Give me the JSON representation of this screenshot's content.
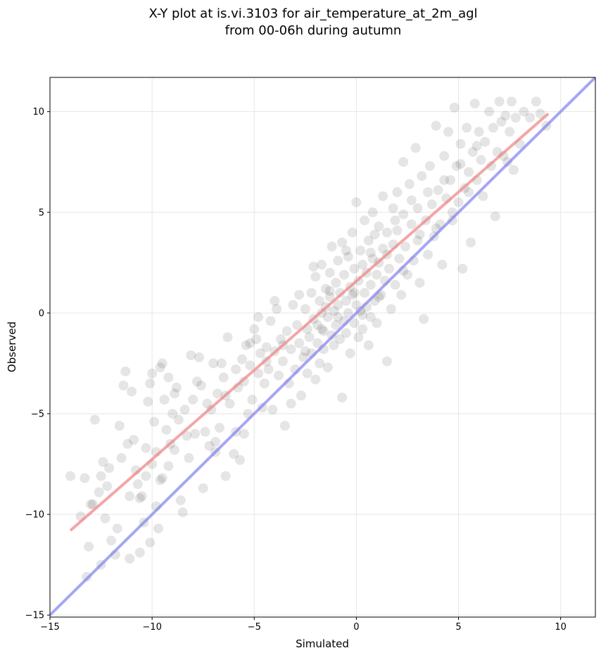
{
  "chart_data": {
    "type": "scatter",
    "title_lines": [
      "X-Y plot at is.vi.3103 for air_temperature_at_2m_agl",
      "from 00-06h during autumn"
    ],
    "xlabel": "Simulated",
    "ylabel": "Observed",
    "xlim": [
      -15,
      11.7
    ],
    "ylim": [
      -15.1,
      11.7
    ],
    "xticks": [
      -15,
      -10,
      -5,
      0,
      5,
      10
    ],
    "yticks": [
      -15,
      -10,
      -5,
      0,
      5,
      10
    ],
    "xtick_labels": [
      "−15",
      "−10",
      "−5",
      "0",
      "5",
      "10"
    ],
    "ytick_labels": [
      "−15",
      "−10",
      "−5",
      "0",
      "5",
      "10"
    ],
    "grid": true,
    "point_color": "#000000",
    "point_opacity": 0.1,
    "lines": [
      {
        "role": "regression",
        "color": "#f08080",
        "x": [
          -14,
          9.4
        ],
        "y": [
          -10.8,
          9.9
        ]
      },
      {
        "role": "identity",
        "color": "#8080f0",
        "x": [
          -15,
          11.7
        ],
        "y": [
          -15,
          11.7
        ]
      }
    ],
    "points": [
      [
        -14.0,
        -8.1
      ],
      [
        -13.5,
        -10.1
      ],
      [
        -13.3,
        -8.2
      ],
      [
        -13.2,
        -13.1
      ],
      [
        -13.1,
        -11.6
      ],
      [
        -13.0,
        -9.5
      ],
      [
        -12.8,
        -5.3
      ],
      [
        -12.6,
        -8.9
      ],
      [
        -12.5,
        -12.5
      ],
      [
        -12.5,
        -8.1
      ],
      [
        -12.4,
        -7.4
      ],
      [
        -12.3,
        -10.2
      ],
      [
        -12.2,
        -8.6
      ],
      [
        -12.1,
        -7.7
      ],
      [
        -11.8,
        -12.0
      ],
      [
        -11.6,
        -5.6
      ],
      [
        -11.5,
        -7.2
      ],
      [
        -11.4,
        -3.6
      ],
      [
        -11.3,
        -2.9
      ],
      [
        -11.2,
        -6.5
      ],
      [
        -11.1,
        -9.1
      ],
      [
        -11.0,
        -3.9
      ],
      [
        -10.9,
        -6.3
      ],
      [
        -10.8,
        -7.8
      ],
      [
        -10.7,
        -8.5
      ],
      [
        -10.6,
        -11.9
      ],
      [
        -10.5,
        -9.1
      ],
      [
        -10.4,
        -10.4
      ],
      [
        -10.3,
        -6.7
      ],
      [
        -10.3,
        -8.1
      ],
      [
        -10.2,
        -4.4
      ],
      [
        -10.1,
        -3.5
      ],
      [
        -10.0,
        -7.5
      ],
      [
        -10.0,
        -3.0
      ],
      [
        -9.9,
        -5.4
      ],
      [
        -9.8,
        -6.9
      ],
      [
        -9.7,
        -10.7
      ],
      [
        -9.6,
        -2.7
      ],
      [
        -9.5,
        -8.2
      ],
      [
        -9.5,
        -2.5
      ],
      [
        -9.4,
        -4.3
      ],
      [
        -9.3,
        -5.8
      ],
      [
        -9.2,
        -3.2
      ],
      [
        -9.1,
        -6.5
      ],
      [
        -9.0,
        -5.0
      ],
      [
        -8.9,
        -6.8
      ],
      [
        -8.8,
        -3.7
      ],
      [
        -8.7,
        -5.3
      ],
      [
        -8.6,
        -9.3
      ],
      [
        -8.5,
        -9.9
      ],
      [
        -8.4,
        -4.8
      ],
      [
        -8.3,
        -6.1
      ],
      [
        -8.1,
        -2.1
      ],
      [
        -8.0,
        -4.3
      ],
      [
        -7.9,
        -6.0
      ],
      [
        -7.8,
        -3.4
      ],
      [
        -7.6,
        -3.6
      ],
      [
        -7.5,
        -8.7
      ],
      [
        -7.4,
        -5.9
      ],
      [
        -7.2,
        -6.6
      ],
      [
        -7.1,
        -4.8
      ],
      [
        -7.0,
        -2.5
      ],
      [
        -6.9,
        -6.4
      ],
      [
        -6.8,
        -4.0
      ],
      [
        -6.7,
        -5.7
      ],
      [
        -6.6,
        -2.5
      ],
      [
        -6.5,
        -3.2
      ],
      [
        -6.4,
        -8.1
      ],
      [
        -6.3,
        -1.2
      ],
      [
        -6.2,
        -4.5
      ],
      [
        -6.0,
        -7.0
      ],
      [
        -5.9,
        -5.9
      ],
      [
        -5.8,
        -3.7
      ],
      [
        -5.7,
        -7.3
      ],
      [
        -5.6,
        -2.3
      ],
      [
        -5.5,
        -3.4
      ],
      [
        -5.4,
        -1.6
      ],
      [
        -5.3,
        -5.0
      ],
      [
        -5.2,
        -2.6
      ],
      [
        -5.1,
        -4.3
      ],
      [
        -5.0,
        -0.8
      ],
      [
        -4.9,
        -1.3
      ],
      [
        -4.8,
        -3.0
      ],
      [
        -4.7,
        -2.0
      ],
      [
        -4.6,
        -4.7
      ],
      [
        -4.5,
        -3.5
      ],
      [
        -4.4,
        -1.7
      ],
      [
        -4.3,
        -2.8
      ],
      [
        -4.2,
        -0.4
      ],
      [
        -4.1,
        -4.8
      ],
      [
        -4.0,
        -1.9
      ],
      [
        -3.9,
        0.2
      ],
      [
        -3.8,
        -3.1
      ],
      [
        -3.7,
        -1.3
      ],
      [
        -3.6,
        -2.4
      ],
      [
        -3.5,
        -5.6
      ],
      [
        -3.4,
        -0.9
      ],
      [
        -3.3,
        -3.5
      ],
      [
        -3.2,
        -1.8
      ],
      [
        -3.1,
        0.4
      ],
      [
        -3.0,
        -2.8
      ],
      [
        -2.9,
        -0.6
      ],
      [
        -2.8,
        -1.5
      ],
      [
        -2.7,
        -4.1
      ],
      [
        -2.6,
        -2.2
      ],
      [
        -2.5,
        0.2
      ],
      [
        -2.4,
        -0.8
      ],
      [
        -2.4,
        -3.0
      ],
      [
        -2.3,
        -1.2
      ],
      [
        -2.2,
        1.0
      ],
      [
        -2.2,
        -2.0
      ],
      [
        -2.1,
        -0.3
      ],
      [
        -2.0,
        -3.3
      ],
      [
        -2.0,
        1.8
      ],
      [
        -1.9,
        -0.6
      ],
      [
        -1.9,
        -1.5
      ],
      [
        -1.8,
        0.6
      ],
      [
        -1.8,
        -2.5
      ],
      [
        -1.7,
        0.0
      ],
      [
        -1.7,
        2.4
      ],
      [
        -1.6,
        -0.9
      ],
      [
        -1.6,
        -1.8
      ],
      [
        -1.5,
        1.2
      ],
      [
        -1.5,
        0.3
      ],
      [
        -1.4,
        -2.7
      ],
      [
        -1.4,
        -0.2
      ],
      [
        -1.3,
        2.0
      ],
      [
        -1.3,
        0.8
      ],
      [
        -1.2,
        -1.1
      ],
      [
        -1.2,
        3.3
      ],
      [
        -1.1,
        0.1
      ],
      [
        -1.1,
        -1.6
      ],
      [
        -1.0,
        1.5
      ],
      [
        -1.0,
        -0.6
      ],
      [
        -0.9,
        2.6
      ],
      [
        -0.9,
        0.4
      ],
      [
        -0.8,
        -1.3
      ],
      [
        -0.8,
        1.0
      ],
      [
        -0.7,
        -4.2
      ],
      [
        -0.7,
        3.5
      ],
      [
        -0.6,
        -0.4
      ],
      [
        -0.6,
        1.9
      ],
      [
        -0.5,
        0.6
      ],
      [
        -0.5,
        -1.0
      ],
      [
        -0.4,
        2.8
      ],
      [
        -0.4,
        0.0
      ],
      [
        -0.3,
        1.3
      ],
      [
        -0.3,
        -2.0
      ],
      [
        -0.2,
        4.0
      ],
      [
        -0.2,
        0.9
      ],
      [
        -0.1,
        -0.5
      ],
      [
        -0.1,
        2.2
      ],
      [
        0.0,
        0.4
      ],
      [
        0.0,
        5.5
      ],
      [
        0.1,
        1.6
      ],
      [
        0.1,
        -1.2
      ],
      [
        0.2,
        3.1
      ],
      [
        0.2,
        0.1
      ],
      [
        0.3,
        2.4
      ],
      [
        0.3,
        -0.8
      ],
      [
        0.4,
        1.0
      ],
      [
        0.4,
        4.6
      ],
      [
        0.5,
        0.3
      ],
      [
        0.5,
        2.0
      ],
      [
        0.6,
        -1.6
      ],
      [
        0.6,
        3.6
      ],
      [
        0.7,
        1.4
      ],
      [
        0.7,
        -0.2
      ],
      [
        0.8,
        2.7
      ],
      [
        0.8,
        5.0
      ],
      [
        0.9,
        0.6
      ],
      [
        0.9,
        3.9
      ],
      [
        1.0,
        1.9
      ],
      [
        1.0,
        -0.5
      ],
      [
        1.1,
        4.3
      ],
      [
        1.1,
        2.5
      ],
      [
        1.2,
        0.9
      ],
      [
        1.3,
        5.8
      ],
      [
        1.3,
        3.2
      ],
      [
        1.4,
        1.6
      ],
      [
        1.5,
        -2.4
      ],
      [
        1.5,
        4.0
      ],
      [
        1.6,
        2.2
      ],
      [
        1.7,
        0.2
      ],
      [
        1.8,
        5.2
      ],
      [
        1.8,
        3.4
      ],
      [
        1.9,
        1.4
      ],
      [
        2.0,
        6.0
      ],
      [
        2.0,
        4.1
      ],
      [
        2.1,
        2.7
      ],
      [
        2.2,
        0.9
      ],
      [
        2.3,
        7.5
      ],
      [
        2.3,
        4.9
      ],
      [
        2.4,
        3.3
      ],
      [
        2.5,
        1.9
      ],
      [
        2.6,
        6.4
      ],
      [
        2.7,
        4.4
      ],
      [
        2.8,
        2.6
      ],
      [
        2.9,
        8.2
      ],
      [
        3.0,
        5.2
      ],
      [
        3.0,
        3.6
      ],
      [
        3.1,
        1.5
      ],
      [
        3.2,
        6.8
      ],
      [
        3.3,
        -0.3
      ],
      [
        3.4,
        4.6
      ],
      [
        3.5,
        2.9
      ],
      [
        3.6,
        7.3
      ],
      [
        3.7,
        5.4
      ],
      [
        3.8,
        3.8
      ],
      [
        3.9,
        9.3
      ],
      [
        4.0,
        6.1
      ],
      [
        4.1,
        4.4
      ],
      [
        4.2,
        2.4
      ],
      [
        4.3,
        7.8
      ],
      [
        4.4,
        5.7
      ],
      [
        4.5,
        9.0
      ],
      [
        4.6,
        6.6
      ],
      [
        4.7,
        4.6
      ],
      [
        4.8,
        10.2
      ],
      [
        4.9,
        7.3
      ],
      [
        5.0,
        5.5
      ],
      [
        5.1,
        8.4
      ],
      [
        5.2,
        2.2
      ],
      [
        5.3,
        6.2
      ],
      [
        5.4,
        9.2
      ],
      [
        5.5,
        7.0
      ],
      [
        5.6,
        3.5
      ],
      [
        5.7,
        8.0
      ],
      [
        5.8,
        10.4
      ],
      [
        5.9,
        6.6
      ],
      [
        6.0,
        9.0
      ],
      [
        6.1,
        7.6
      ],
      [
        6.2,
        5.8
      ],
      [
        6.3,
        8.5
      ],
      [
        6.5,
        10.0
      ],
      [
        6.6,
        7.3
      ],
      [
        6.7,
        9.2
      ],
      [
        6.8,
        4.8
      ],
      [
        6.9,
        8.0
      ],
      [
        7.0,
        10.5
      ],
      [
        7.1,
        9.5
      ],
      [
        7.2,
        7.8
      ],
      [
        7.3,
        9.8
      ],
      [
        7.4,
        7.5
      ],
      [
        7.5,
        9.0
      ],
      [
        7.6,
        10.5
      ],
      [
        7.7,
        7.1
      ],
      [
        7.8,
        9.7
      ],
      [
        8.0,
        8.4
      ],
      [
        8.2,
        10.0
      ],
      [
        8.5,
        9.7
      ],
      [
        8.8,
        10.5
      ],
      [
        9.0,
        9.9
      ],
      [
        9.3,
        9.3
      ],
      [
        -12.9,
        -9.5
      ],
      [
        -12.0,
        -11.3
      ],
      [
        -11.7,
        -10.7
      ],
      [
        -11.1,
        -12.2
      ],
      [
        -10.6,
        -9.2
      ],
      [
        -10.1,
        -11.4
      ],
      [
        -9.8,
        -9.6
      ],
      [
        -9.6,
        -8.3
      ],
      [
        -9.2,
        -7.6
      ],
      [
        -8.9,
        -4.0
      ],
      [
        -8.2,
        -7.2
      ],
      [
        -7.7,
        -2.2
      ],
      [
        -7.3,
        -4.5
      ],
      [
        -6.9,
        -6.9
      ],
      [
        -6.4,
        -4.1
      ],
      [
        -5.9,
        -2.8
      ],
      [
        -5.5,
        -6.0
      ],
      [
        -5.2,
        -1.5
      ],
      [
        -4.8,
        -0.2
      ],
      [
        -4.4,
        -2.4
      ],
      [
        -4.0,
        0.6
      ],
      [
        -3.6,
        -1.6
      ],
      [
        -3.2,
        -4.5
      ],
      [
        -2.8,
        0.9
      ],
      [
        -2.5,
        -1.9
      ],
      [
        -2.1,
        2.3
      ],
      [
        -1.7,
        -0.8
      ],
      [
        -1.3,
        1.1
      ],
      [
        -0.9,
        -0.2
      ],
      [
        -0.5,
        3.1
      ],
      [
        -0.1,
        1.0
      ],
      [
        0.3,
        -0.1
      ],
      [
        0.7,
        3.0
      ],
      [
        1.1,
        0.8
      ],
      [
        1.5,
        2.9
      ],
      [
        1.9,
        4.6
      ],
      [
        2.3,
        2.1
      ],
      [
        2.7,
        5.6
      ],
      [
        3.1,
        3.9
      ],
      [
        3.5,
        6.0
      ],
      [
        3.9,
        4.2
      ],
      [
        4.3,
        6.6
      ],
      [
        4.7,
        5.0
      ],
      [
        5.1,
        7.4
      ],
      [
        5.5,
        6.0
      ],
      [
        5.9,
        8.3
      ]
    ]
  }
}
